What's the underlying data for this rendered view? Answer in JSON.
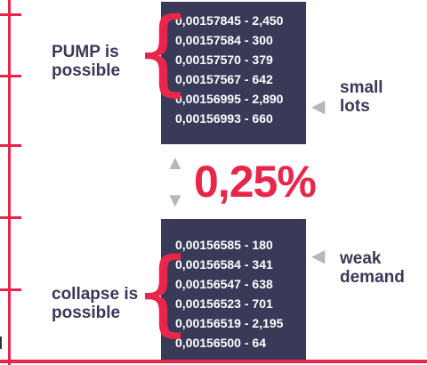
{
  "colors": {
    "accent": "#e8254a",
    "navy": "#383a58",
    "gray": "#b7b7b7"
  },
  "ask_book": {
    "rows": [
      "0,00157845 - 2,450",
      "0,00157584 - 300",
      "0,00157570 - 379",
      "0,00157567 - 642",
      "0,00156995 - 2,890",
      "0,00156993 - 660"
    ]
  },
  "bid_book": {
    "rows": [
      "0,00156585 - 180",
      "0,00156584 - 341",
      "0,00156547 - 638",
      "0,00156523 - 701",
      "0,00156519 - 2,195",
      "0,00156500 - 64"
    ]
  },
  "labels": {
    "pump_line1": "PUMP is",
    "pump_line2": "possible",
    "collapse_line1": "collapse is",
    "collapse_line2": "possible",
    "small_line1": "small",
    "small_line2": "lots",
    "weak_line1": "weak",
    "weak_line2": "demand"
  },
  "spread": "0,25%",
  "icons": {
    "brace": "{",
    "pointer": "◀",
    "up": "▲",
    "down": "▼"
  }
}
